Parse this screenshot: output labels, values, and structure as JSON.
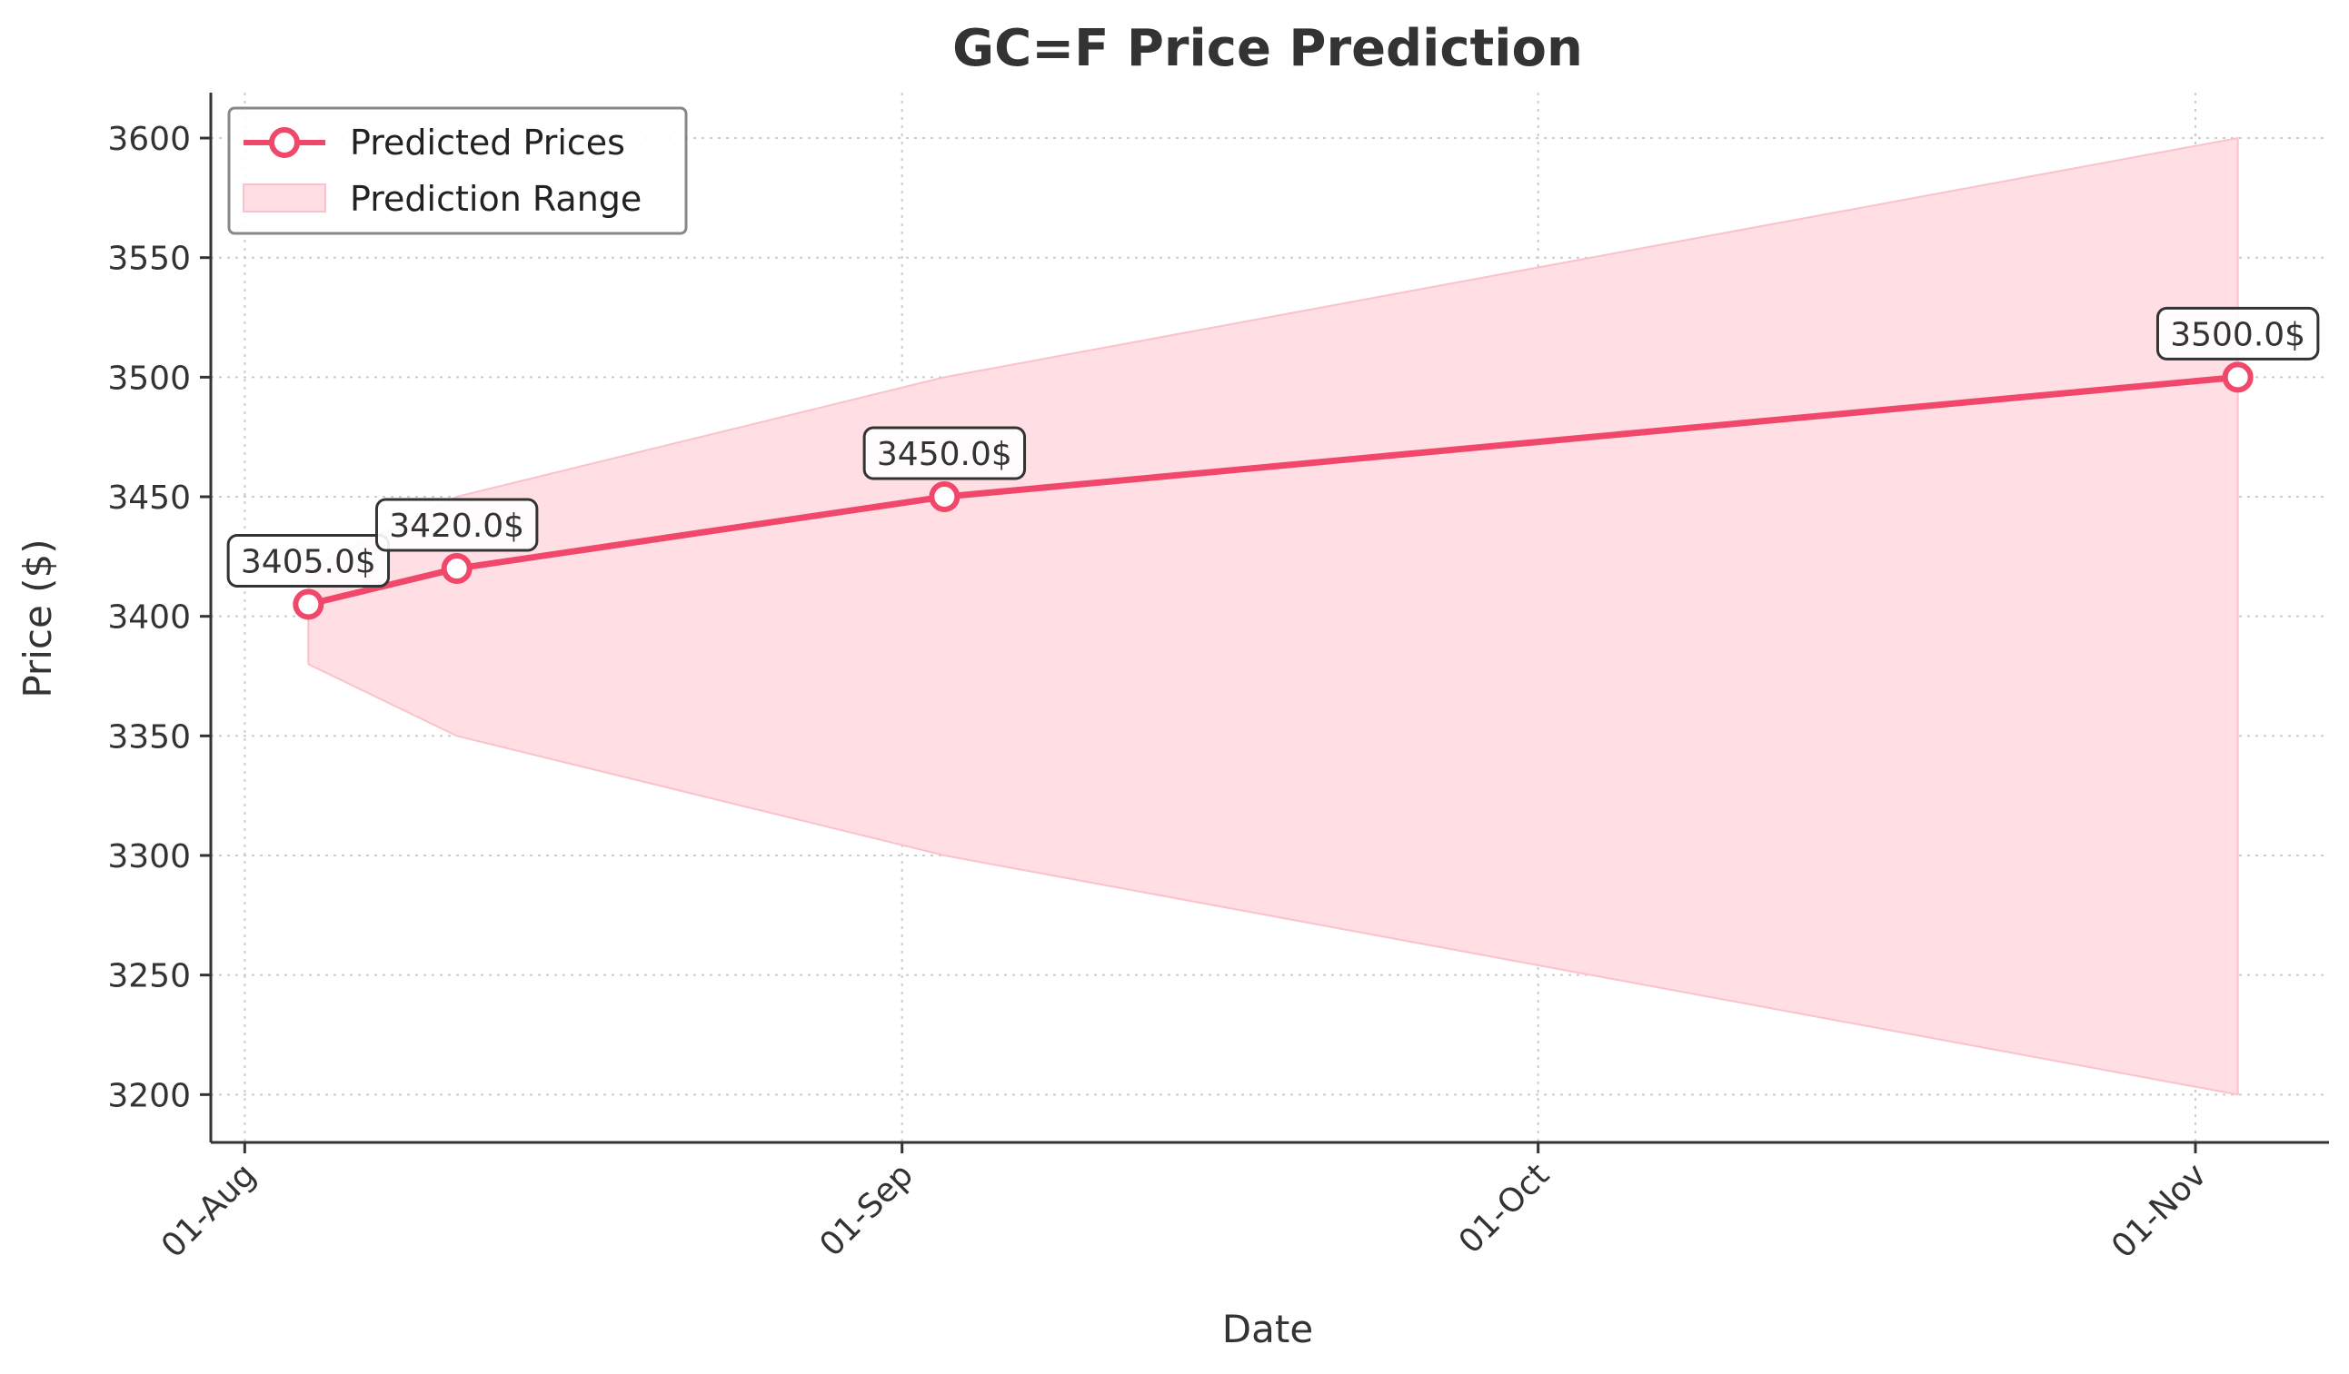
{
  "chart_data": {
    "type": "line",
    "title": "GC=F Price Prediction",
    "xlabel": "Date",
    "ylabel": "Price ($)",
    "x_tick_labels": [
      "01-Aug",
      "01-Sep",
      "01-Oct",
      "01-Nov"
    ],
    "x_tick_days": [
      0,
      31,
      61,
      92
    ],
    "x_range_days": [
      -1.6,
      98.3
    ],
    "y_ticks": [
      3200,
      3250,
      3300,
      3350,
      3400,
      3450,
      3500,
      3550,
      3600
    ],
    "ylim": [
      3180,
      3619
    ],
    "grid": true,
    "legend_position": "top-left",
    "series": [
      {
        "name": "Predicted Prices",
        "color": "#f0476a",
        "points": [
          {
            "day": 3,
            "value": 3405.0,
            "label": "3405.0$"
          },
          {
            "day": 10,
            "value": 3420.0,
            "label": "3420.0$"
          },
          {
            "day": 33,
            "value": 3450.0,
            "label": "3450.0$"
          },
          {
            "day": 94,
            "value": 3500.0,
            "label": "3500.0$"
          }
        ]
      }
    ],
    "range": {
      "name": "Prediction Range",
      "color": "#ffdee4",
      "edge_color": "#f9c2cc",
      "points": [
        {
          "day": 3,
          "low": 3380,
          "high": 3420
        },
        {
          "day": 10,
          "low": 3350,
          "high": 3450
        },
        {
          "day": 33,
          "low": 3300,
          "high": 3500
        },
        {
          "day": 94,
          "low": 3200,
          "high": 3600
        }
      ]
    }
  }
}
